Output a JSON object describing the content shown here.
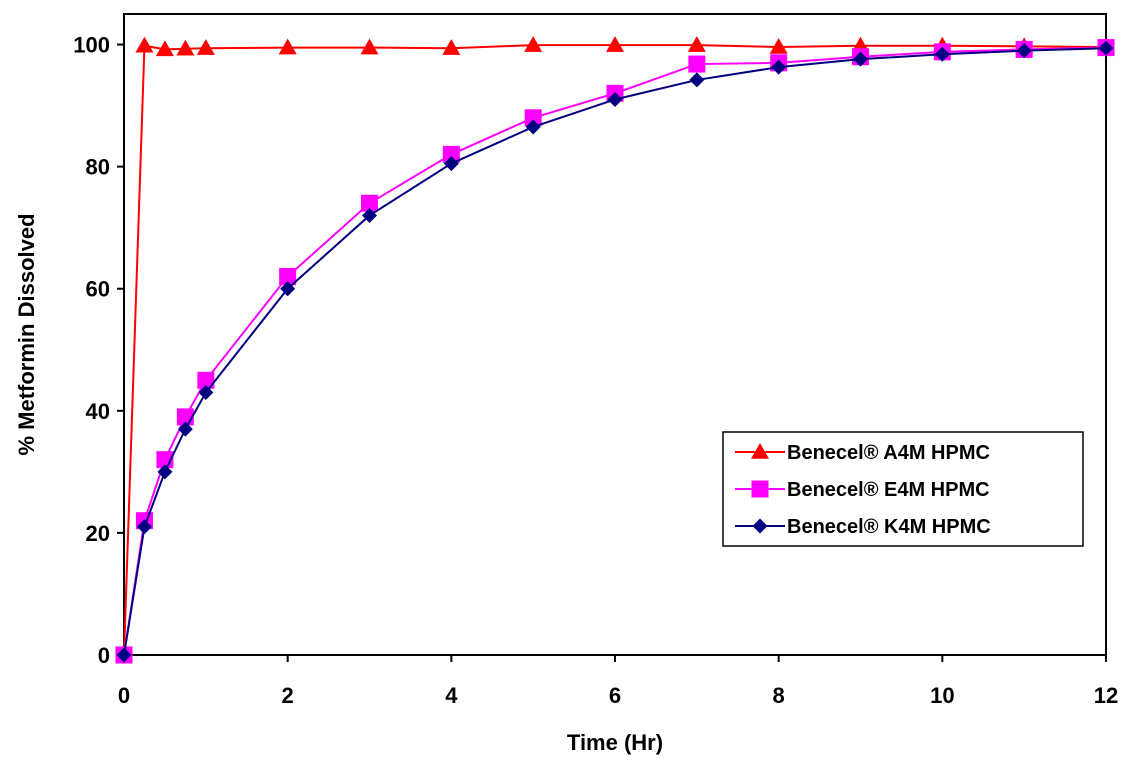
{
  "chart_data": {
    "type": "line",
    "title": "",
    "xlabel": "Time (Hr)",
    "ylabel": "% Metformin Dissolved",
    "xlim": [
      0,
      12
    ],
    "ylim": [
      0,
      105
    ],
    "x_ticks": [
      0,
      2,
      4,
      6,
      8,
      10,
      12
    ],
    "y_ticks": [
      0,
      20,
      40,
      60,
      80,
      100
    ],
    "grid": false,
    "legend_position": "lower-right",
    "series": [
      {
        "name": "Benecel® A4M HPMC",
        "marker": "triangle",
        "color": "#ff0000",
        "points": [
          [
            0,
            0
          ],
          [
            0.25,
            99.8
          ],
          [
            0.5,
            99.2
          ],
          [
            0.75,
            99.3
          ],
          [
            1,
            99.4
          ],
          [
            2,
            99.5
          ],
          [
            3,
            99.5
          ],
          [
            4,
            99.4
          ],
          [
            5,
            99.9
          ],
          [
            6,
            99.9
          ],
          [
            7,
            99.9
          ],
          [
            8,
            99.6
          ],
          [
            9,
            99.8
          ],
          [
            10,
            99.8
          ],
          [
            11,
            99.7
          ],
          [
            12,
            99.6
          ]
        ]
      },
      {
        "name": "Benecel®  E4M HPMC",
        "marker": "square",
        "color": "#ff00ff",
        "points": [
          [
            0,
            0
          ],
          [
            0.25,
            22
          ],
          [
            0.5,
            32
          ],
          [
            0.75,
            39
          ],
          [
            1,
            45
          ],
          [
            2,
            62
          ],
          [
            3,
            74
          ],
          [
            4,
            82
          ],
          [
            5,
            88
          ],
          [
            6,
            92
          ],
          [
            7,
            96.8
          ],
          [
            8,
            97
          ],
          [
            9,
            98
          ],
          [
            10,
            98.8
          ],
          [
            11,
            99.2
          ],
          [
            12,
            99.5
          ]
        ]
      },
      {
        "name": "Benecel® K4M HPMC",
        "marker": "diamond",
        "color": "#000080",
        "points": [
          [
            0,
            0
          ],
          [
            0.25,
            21
          ],
          [
            0.5,
            30
          ],
          [
            0.75,
            37
          ],
          [
            1,
            43
          ],
          [
            2,
            60
          ],
          [
            3,
            72
          ],
          [
            4,
            80.5
          ],
          [
            5,
            86.5
          ],
          [
            6,
            91
          ],
          [
            7,
            94.2
          ],
          [
            8,
            96.3
          ],
          [
            9,
            97.6
          ],
          [
            10,
            98.4
          ],
          [
            11,
            99
          ],
          [
            12,
            99.4
          ]
        ]
      }
    ]
  }
}
